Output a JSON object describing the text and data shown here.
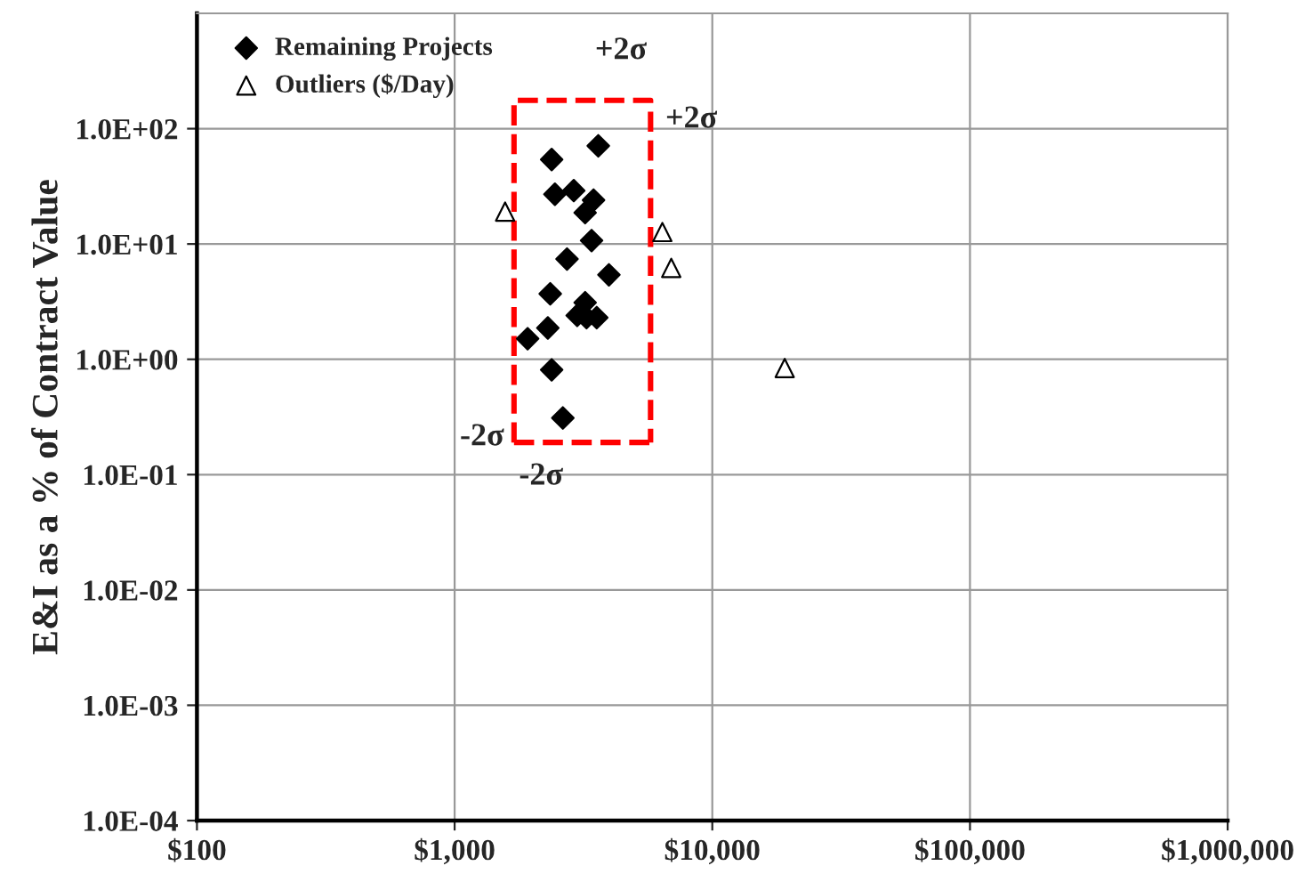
{
  "chart_data": {
    "type": "scatter",
    "ylabel": "E&I as a % of Contract Value",
    "log": "xy",
    "grid": true,
    "legend": "top left",
    "xlim": [
      100,
      1000000
    ],
    "xticks": [
      {
        "value": 100,
        "label": "$100"
      },
      {
        "value": 1000,
        "label": "$1,000"
      },
      {
        "value": 10000,
        "label": "$10,000"
      },
      {
        "value": 100000,
        "label": "$100,000"
      },
      {
        "value": 1000000,
        "label": "$1,000,000"
      }
    ],
    "ylim": [
      0.0001,
      1000
    ],
    "yticks": [
      {
        "value": 0.0001,
        "label": "1.0E-04"
      },
      {
        "value": 0.001,
        "label": "1.0E-03"
      },
      {
        "value": 0.01,
        "label": "1.0E-02"
      },
      {
        "value": 0.1,
        "label": "1.0E-01"
      },
      {
        "value": 1,
        "label": "1.0E+00"
      },
      {
        "value": 10,
        "label": "1.0E+01"
      },
      {
        "value": 100,
        "label": "1.0E+02"
      }
    ],
    "series": [
      {
        "name": "Remaining Projects",
        "marker": "diamond",
        "color": "#000000",
        "x": [
          3610,
          2380,
          2450,
          2900,
          3460,
          3210,
          3400,
          2730,
          3970,
          2350,
          3210,
          2990,
          3250,
          3560,
          2300,
          1920,
          2380,
          2630
        ],
        "values": [
          71,
          54,
          27,
          29,
          24,
          18.7,
          10.7,
          7.4,
          5.4,
          3.7,
          3.1,
          2.4,
          2.3,
          2.3,
          1.87,
          1.51,
          0.81,
          0.31
        ]
      },
      {
        "name": "Outliers ($/Day)",
        "marker": "triangle",
        "color": "#000000",
        "x": [
          1570,
          6400,
          6930,
          19100
        ],
        "values": [
          19.1,
          12.7,
          6.2,
          0.84
        ]
      },
      {
        "type": "line",
        "line_style": "dashed",
        "marker": "none",
        "color": "#ff0000",
        "x": [
          1700,
          1700,
          5760,
          5760
        ],
        "values": [
          0.19,
          176,
          176,
          0.19
        ]
      },
      {
        "type": "line",
        "line_style": "dashed",
        "marker": "none",
        "color": "#ff0000",
        "x": [
          1700,
          5760
        ],
        "values": [
          0.19,
          0.19
        ]
      }
    ],
    "annotations": [
      "+2σ",
      "+2σ",
      "-2σ",
      "-2σ"
    ]
  }
}
